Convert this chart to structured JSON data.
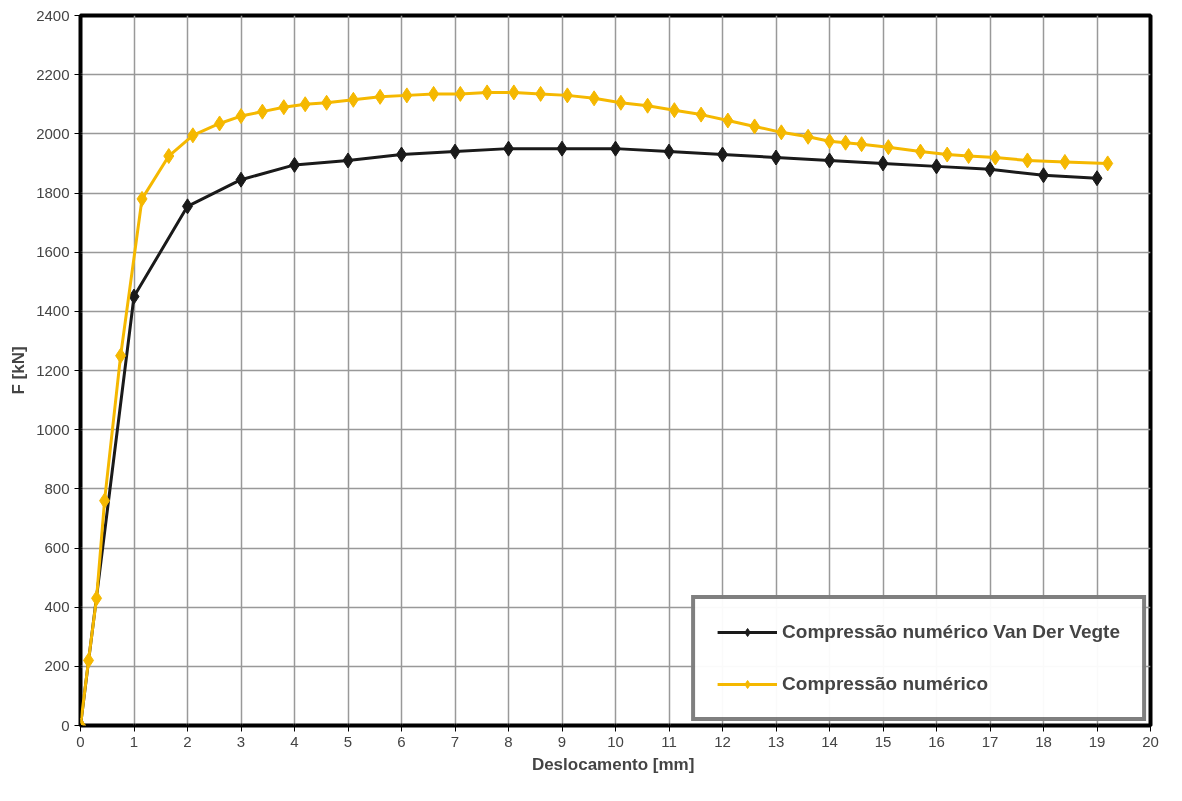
{
  "chart_data": {
    "type": "line",
    "xlabel": "Deslocamento  [mm]",
    "ylabel": "F [kN]",
    "xlim": [
      0,
      20
    ],
    "ylim": [
      0,
      2400
    ],
    "xticks": [
      0,
      1,
      2,
      3,
      4,
      5,
      6,
      7,
      8,
      9,
      10,
      11,
      12,
      13,
      14,
      15,
      16,
      17,
      18,
      19,
      20
    ],
    "yticks": [
      0,
      200,
      400,
      600,
      800,
      1000,
      1200,
      1400,
      1600,
      1800,
      2000,
      2200,
      2400
    ],
    "grid": true,
    "legend": "bottom right",
    "marker": "diamond",
    "line_style": "solid",
    "series": [
      {
        "name": "Compressão numérico Van Der Vegte",
        "color": "#1a1a1a",
        "x": [
          0,
          1,
          2,
          3,
          4,
          5,
          6,
          7,
          8,
          9,
          10,
          11,
          12,
          13,
          14,
          15,
          16,
          17,
          18,
          19
        ],
        "values": [
          0,
          1450,
          1755,
          1845,
          1895,
          1910,
          1930,
          1940,
          1950,
          1950,
          1950,
          1940,
          1930,
          1920,
          1910,
          1900,
          1890,
          1880,
          1860,
          1850
        ]
      },
      {
        "name": "Compressão numérico",
        "color": "#f5b800",
        "x": [
          0,
          0.15,
          0.3,
          0.45,
          0.75,
          1.15,
          1.65,
          2.1,
          2.6,
          3,
          3.4,
          3.8,
          4.2,
          4.6,
          5.1,
          5.6,
          6.1,
          6.6,
          7.1,
          7.6,
          8.1,
          8.6,
          9.1,
          9.6,
          10.1,
          10.6,
          11.1,
          11.6,
          12.1,
          12.6,
          13.1,
          13.6,
          14,
          14.3,
          14.6,
          15.1,
          15.7,
          16.2,
          16.6,
          17.1,
          17.7,
          18.4,
          19.2
        ],
        "values": [
          0,
          220,
          430,
          760,
          1250,
          1780,
          1925,
          1995,
          2035,
          2060,
          2075,
          2090,
          2100,
          2105,
          2115,
          2125,
          2130,
          2135,
          2135,
          2140,
          2140,
          2135,
          2130,
          2120,
          2105,
          2095,
          2080,
          2065,
          2045,
          2025,
          2005,
          1990,
          1975,
          1970,
          1965,
          1955,
          1940,
          1930,
          1925,
          1920,
          1910,
          1905,
          1900
        ]
      }
    ]
  }
}
